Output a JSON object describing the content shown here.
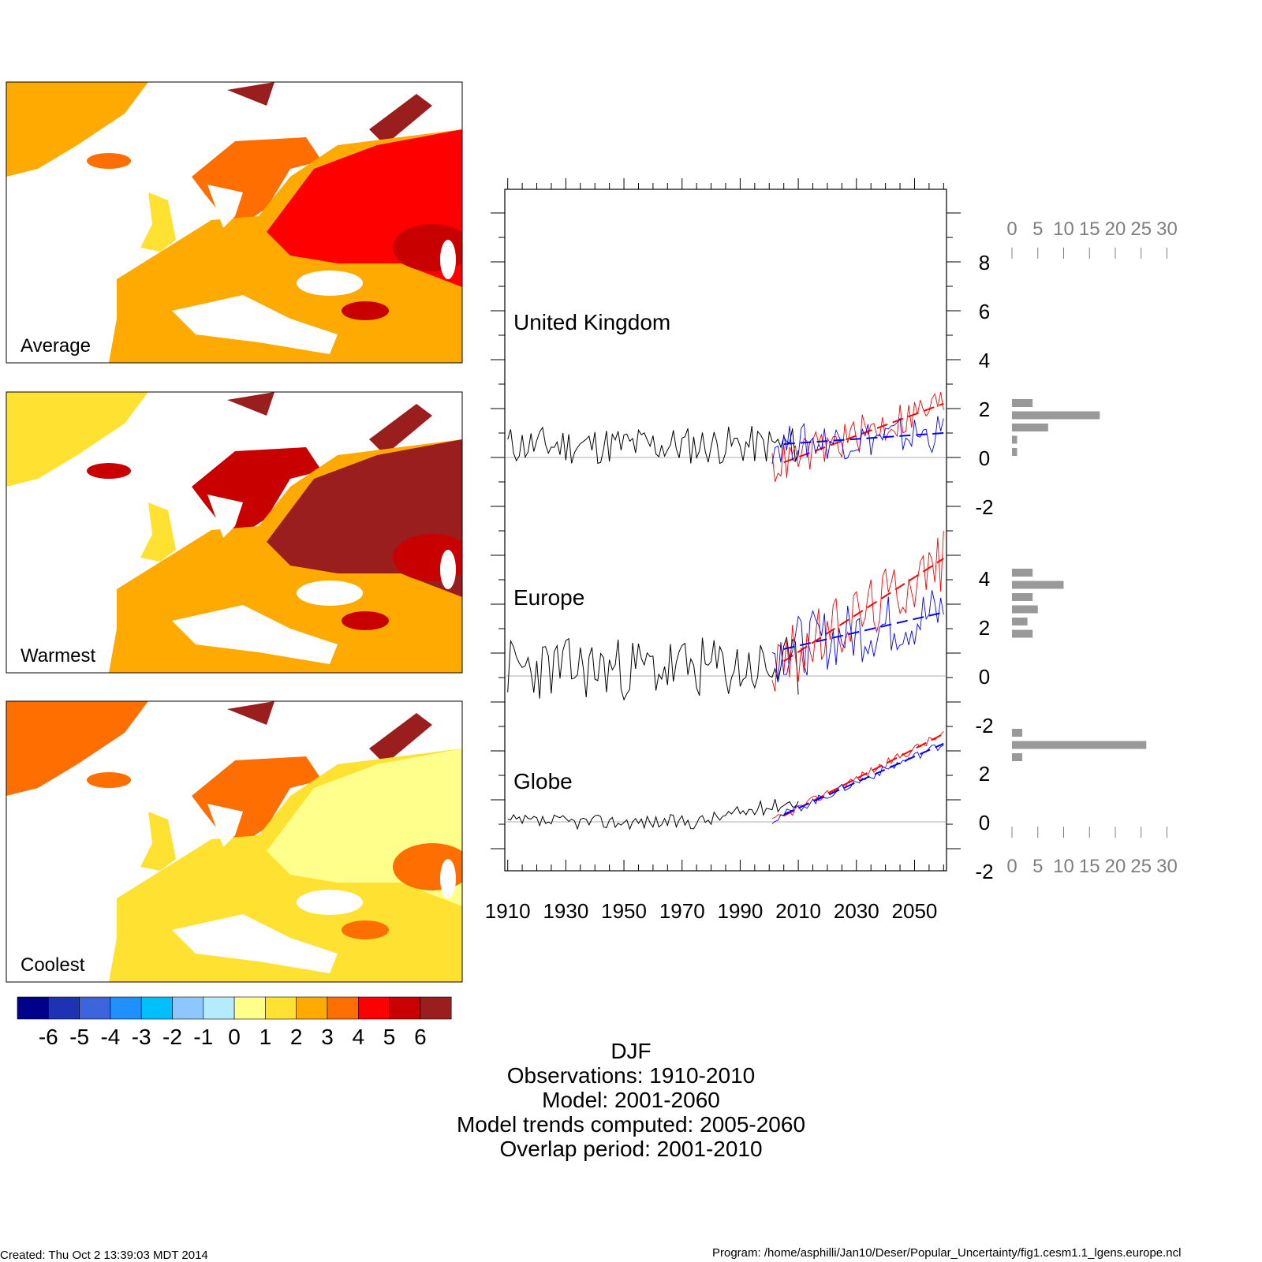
{
  "maps": [
    {
      "label": "Average"
    },
    {
      "label": "Warmest"
    },
    {
      "label": "Coolest"
    }
  ],
  "colorbar": {
    "colors": [
      "#00008b",
      "#1e32b4",
      "#3c64dc",
      "#1e90ff",
      "#00bfff",
      "#8cc8ff",
      "#b4ebff",
      "#ffff8c",
      "#ffe132",
      "#ffaa00",
      "#ff6e00",
      "#ff0000",
      "#c80000",
      "#9b1e1e"
    ],
    "labels": [
      "-6",
      "-5",
      "-4",
      "-3",
      "-2",
      "-1",
      "0",
      "1",
      "2",
      "3",
      "4",
      "5",
      "6"
    ]
  },
  "region_labels": [
    "United Kingdom",
    "Europe",
    "Globe"
  ],
  "caption": {
    "season": "DJF",
    "observations": "Observations: 1910-2010",
    "model": "Model: 2001-2060",
    "trends": "Model trends computed: 2005-2060",
    "overlap": "Overlap period: 2001-2010"
  },
  "footer": {
    "created": "Created: Thu Oct  2 13:39:03 MDT 2014",
    "program": "Program: /home/asphilli/Jan10/Deser/Popular_Uncertainty/fig1.cesm1.1_lgens.europe.ncl"
  },
  "chart_data": [
    {
      "type": "line",
      "x_tick_labels": [
        "1910",
        "1930",
        "1950",
        "1970",
        "1990",
        "2010",
        "2030",
        "2050"
      ],
      "xlim": [
        1909,
        2061
      ],
      "series_colors": {
        "observations": "#000000",
        "warm_member": "#ff0000",
        "cool_member": "#0000ff"
      },
      "panels": [
        {
          "name": "United Kingdom",
          "y_tick_labels": [
            "-2",
            "0",
            "2",
            "4",
            "6",
            "8"
          ],
          "ylim": [
            -2,
            8
          ],
          "obs_years": [
            1910,
            2010
          ],
          "obs_seed": 11,
          "obs_mean": 0.5,
          "obs_amp": 0.8,
          "warm_trend": [
            [
              2005,
              -0.2
            ],
            [
              2060,
              2.2
            ]
          ],
          "cool_trend": [
            [
              2005,
              0.55
            ],
            [
              2060,
              1.0
            ]
          ]
        },
        {
          "name": "Europe",
          "y_tick_labels": [
            "-2",
            "0",
            "2",
            "4"
          ],
          "ylim": [
            -2,
            4
          ],
          "obs_years": [
            1910,
            2010
          ],
          "obs_seed": 23,
          "obs_mean": 0.3,
          "obs_amp": 1.3,
          "warm_trend": [
            [
              2005,
              0.6
            ],
            [
              2060,
              4.8
            ]
          ],
          "cool_trend": [
            [
              2005,
              1.1
            ],
            [
              2060,
              2.6
            ]
          ]
        },
        {
          "name": "Globe",
          "y_tick_labels": [
            "0",
            "2"
          ],
          "ylim": [
            -2,
            4
          ],
          "obs_years": [
            1910,
            2010
          ],
          "obs_seed": 37,
          "obs_mean": 0.0,
          "obs_amp": 0.15,
          "warm_trend": [
            [
              2005,
              0.25
            ],
            [
              2060,
              3.6
            ]
          ],
          "cool_trend": [
            [
              2005,
              0.3
            ],
            [
              2060,
              3.2
            ]
          ]
        }
      ]
    },
    {
      "type": "bar",
      "orientation": "horizontal",
      "x_tick_labels": [
        "0",
        "5",
        "10",
        "15",
        "20",
        "25",
        "30"
      ],
      "xlim": [
        0,
        30
      ],
      "bar_color": "#999999",
      "groups": [
        {
          "name": "United Kingdom",
          "values": [
            4,
            17,
            7,
            1,
            1
          ]
        },
        {
          "name": "Europe",
          "values": [
            4,
            10,
            4,
            5,
            3,
            4
          ]
        },
        {
          "name": "Globe",
          "values": [
            2,
            26,
            2
          ]
        }
      ]
    }
  ]
}
